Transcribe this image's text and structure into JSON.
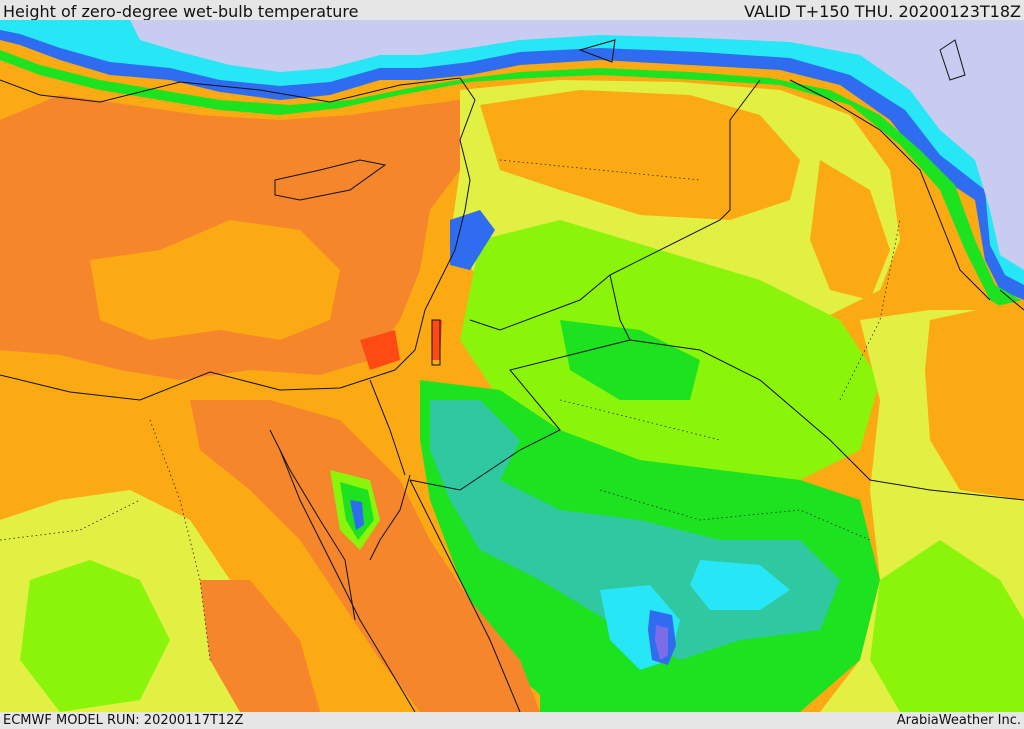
{
  "header": {
    "title": "Height of zero-degree wet-bulb temperature",
    "valid": "VALID T+150 THU. 20200123T18Z"
  },
  "footer": {
    "model_run": "ECMWF MODEL RUN: 20200117T12Z",
    "credit": "ArabiaWeather Inc."
  },
  "colors": {
    "deep_orange": "#f5862b",
    "orange": "#fbaa14",
    "yellow": "#e2f043",
    "light_green": "#8af50a",
    "green": "#1de21f",
    "teal": "#2fc8a0",
    "cyan": "#27e6f5",
    "blue": "#2f6cf0",
    "violet": "#7b6ce8",
    "periwinkle": "#c8ccf0",
    "red": "#ff4a14"
  }
}
